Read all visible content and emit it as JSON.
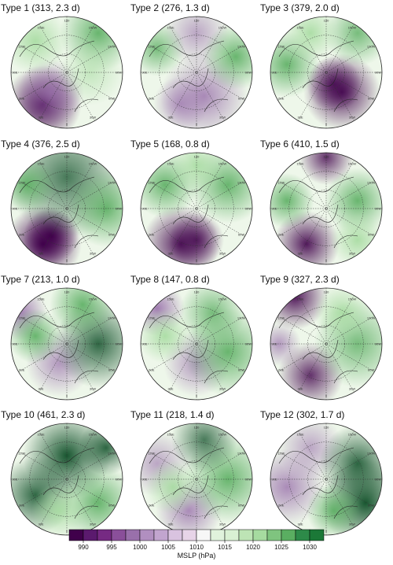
{
  "panels": [
    {
      "title": "Type 1 (313, 2.3 d)"
    },
    {
      "title": "Type 2 (276, 1.3 d)"
    },
    {
      "title": "Type 3 (379, 2.0 d)"
    },
    {
      "title": "Type 4 (376, 2.5 d)"
    },
    {
      "title": "Type 5 (168, 0.8 d)"
    },
    {
      "title": "Type 6 (410, 1.5 d)"
    },
    {
      "title": "Type 7 (213, 1.0 d)"
    },
    {
      "title": "Type 8 (147, 0.8 d)"
    },
    {
      "title": "Type 9 (327, 2.3 d)"
    },
    {
      "title": "Type 10 (461, 2.3 d)"
    },
    {
      "title": "Type 11 (218, 1.4 d)"
    },
    {
      "title": "Type 12 (302, 1.7 d)"
    }
  ],
  "longitude_labels": [
    "180",
    "150E",
    "120E",
    "90E",
    "60E",
    "30E",
    "0",
    "30W",
    "60W",
    "90W",
    "120W",
    "150W"
  ],
  "colorbar": {
    "label": "MSLP (hPa)",
    "levels": [
      987.5,
      990,
      992.5,
      995,
      997.5,
      1000,
      1002.5,
      1005,
      1007.5,
      1010,
      1012.5,
      1015,
      1017.5,
      1020,
      1022.5,
      1025,
      1027.5,
      1030,
      1032.5
    ],
    "colors": [
      "#40004b",
      "#5b1a6e",
      "#762a83",
      "#8a4f9a",
      "#9970ab",
      "#b18fc0",
      "#c2a5cf",
      "#d9c3e0",
      "#e7d4e8",
      "#f7f7f7",
      "#e0f2dc",
      "#d9f0d3",
      "#bde4b5",
      "#a6dba0",
      "#7fc47f",
      "#5aae61",
      "#2d8a49",
      "#1b7837"
    ],
    "ticks": [
      990,
      995,
      1000,
      1005,
      1010,
      1015,
      1020,
      1025,
      1030
    ]
  }
}
